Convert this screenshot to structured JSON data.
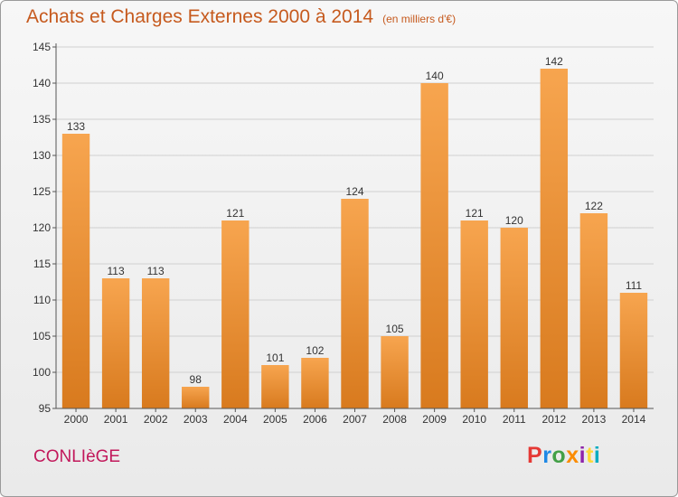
{
  "title": "Achats et Charges Externes 2000 à 2014",
  "unit": "(en milliers d'€)",
  "commune": "CONLIèGE",
  "logo": {
    "text": "Proxiti",
    "colors": [
      "#e53935",
      "#1e88e5",
      "#43a047",
      "#fb8c00",
      "#8e24aa",
      "#fdd835",
      "#00acc1"
    ]
  },
  "colors": {
    "bar_light": "#f7a54f",
    "bar_dark": "#d87a1e",
    "title": "#c65a1e",
    "commune": "#c2185b"
  },
  "chart_data": {
    "type": "bar",
    "categories": [
      "2000",
      "2001",
      "2002",
      "2003",
      "2004",
      "2005",
      "2006",
      "2007",
      "2008",
      "2009",
      "2010",
      "2011",
      "2012",
      "2013",
      "2014"
    ],
    "values": [
      133,
      113,
      113,
      98,
      121,
      101,
      102,
      124,
      105,
      140,
      121,
      120,
      142,
      122,
      111
    ],
    "yticks": [
      95,
      100,
      105,
      110,
      115,
      120,
      125,
      130,
      135,
      140,
      145
    ],
    "ylim": [
      95,
      145
    ],
    "grid": true
  }
}
